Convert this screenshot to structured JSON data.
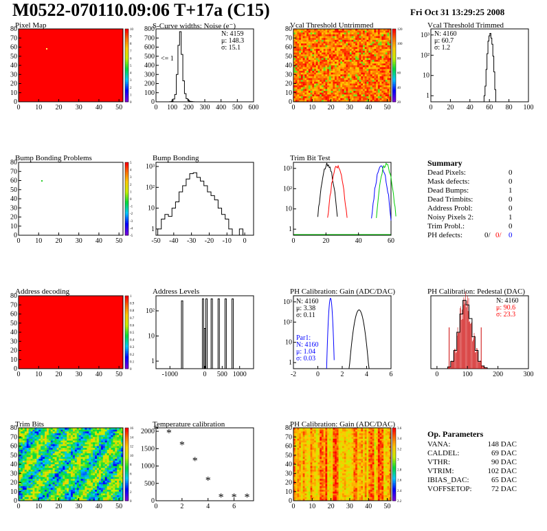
{
  "header": {
    "title": "M0522-070110.09:06 T+17a (C15)",
    "date": "Fri Oct 31 13:29:25 2008"
  },
  "colors": {
    "frame": "#000000",
    "red": "#ff0000",
    "green": "#00cc00",
    "blue": "#0000ff"
  },
  "panels": {
    "pixel_map": {
      "title": "Pixel Map",
      "x_ticks": [
        "0",
        "10",
        "20",
        "30",
        "40",
        "50"
      ],
      "y_ticks": [
        "0",
        "10",
        "20",
        "30",
        "40",
        "50",
        "60",
        "70",
        "80"
      ],
      "palette_ticks": [
        "10",
        "9",
        "8",
        "7",
        "6",
        "5",
        "4",
        "3",
        "2",
        "1",
        "0"
      ],
      "fill": "red"
    },
    "scurve": {
      "title": "S-Curve widths: Noise (e⁻)",
      "stats": [
        "N: 4159",
        "μ: 148.3",
        "σ: 15.1"
      ],
      "note": "<= 1",
      "x_ticks": [
        "0",
        "100",
        "200",
        "300",
        "400",
        "500",
        "600"
      ],
      "y_ticks": [
        "0",
        "100",
        "200",
        "300",
        "400",
        "500",
        "600",
        "700",
        "800"
      ]
    },
    "vcal_untrimmed": {
      "title": "Vcal Threshold Untrimmed",
      "x_ticks": [
        "0",
        "10",
        "20",
        "30",
        "40",
        "50"
      ],
      "y_ticks": [
        "0",
        "10",
        "20",
        "30",
        "40",
        "50",
        "60",
        "70",
        "80"
      ],
      "palette_ticks": [
        "120",
        "100",
        "80",
        "60",
        "40",
        "20"
      ]
    },
    "vcal_trimmed": {
      "title": "Vcal Threshold Trimmed",
      "stats": [
        "N: 4160",
        "μ: 60.7",
        "σ:  1.2"
      ],
      "x_ticks": [
        "0",
        "20",
        "40",
        "60",
        "80",
        "100"
      ],
      "y_ticks": [
        "1",
        "10",
        "10²",
        "10³"
      ]
    },
    "bump_problems": {
      "title": "Bump Bonding Problems",
      "x_ticks": [
        "0",
        "10",
        "20",
        "30",
        "40",
        "50"
      ],
      "y_ticks": [
        "0",
        "10",
        "20",
        "30",
        "40",
        "50",
        "60",
        "70",
        "80"
      ],
      "palette_ticks": [
        "5",
        "4",
        "3",
        "2",
        "1",
        "0",
        "-1",
        "-2",
        "-3",
        "-4",
        "-5"
      ]
    },
    "bump_bonding": {
      "title": "Bump Bonding",
      "x_ticks": [
        "-50",
        "-40",
        "-30",
        "-20",
        "-10",
        "0"
      ],
      "y_ticks": [
        "1",
        "10",
        "10²",
        "10³"
      ]
    },
    "trim_bit": {
      "title": "Trim Bit Test",
      "x_ticks": [
        "0",
        "20",
        "40",
        "60"
      ],
      "y_ticks": [
        "1",
        "10",
        "10²",
        "10³"
      ]
    },
    "address_decoding": {
      "title": "Address decoding",
      "x_ticks": [
        "0",
        "10",
        "20",
        "30",
        "40",
        "50"
      ],
      "y_ticks": [
        "0",
        "10",
        "20",
        "30",
        "40",
        "50",
        "60",
        "70",
        "80"
      ],
      "palette_ticks": [
        "1",
        "0.9",
        "0.8",
        "0.7",
        "0.6",
        "0.5",
        "0.4",
        "0.3",
        "0.2",
        "0.1",
        "0"
      ]
    },
    "address_levels": {
      "title": "Address Levels",
      "x_ticks": [
        "-1000",
        "0",
        "500",
        "1000"
      ],
      "y_ticks": [
        "1",
        "10",
        "10²"
      ]
    },
    "ph_gain": {
      "title": "PH Calibration: Gain (ADC/DAC)",
      "stats": [
        "N: 4160",
        "μ: 3.38",
        "σ: 0.11"
      ],
      "par1": [
        "Par1:",
        "N: 4160",
        "μ: 1.04",
        "σ: 0.03"
      ],
      "x_ticks": [
        "-2",
        "0",
        "2",
        "4",
        "6"
      ],
      "y_ticks": [
        "1",
        "10",
        "10²",
        "10³"
      ]
    },
    "ph_pedestal": {
      "title": "PH Calibration: Pedestal (DAC)",
      "stats": [
        "N: 4160",
        "μ: 90.6",
        "σ: 23.3"
      ],
      "x_ticks": [
        "0",
        "100",
        "200",
        "300"
      ]
    },
    "trim_bits": {
      "title": "Trim Bits",
      "x_ticks": [
        "0",
        "10",
        "20",
        "30",
        "40",
        "50"
      ],
      "y_ticks": [
        "0",
        "10",
        "20",
        "30",
        "40",
        "50",
        "60",
        "70",
        "80"
      ],
      "palette_ticks": [
        "16",
        "14",
        "12",
        "10",
        "8",
        "6",
        "4",
        "2",
        "0"
      ]
    },
    "temperature": {
      "title": "Temperature calibration",
      "x_ticks": [
        "0",
        "2",
        "4",
        "6"
      ],
      "y_ticks": [
        "0",
        "500",
        "1000",
        "1500",
        "2000"
      ]
    },
    "ph_gain_map": {
      "title": "PH Calibration: Gain (ADC/DAC)",
      "x_ticks": [
        "0",
        "10",
        "20",
        "30",
        "40",
        "50"
      ],
      "y_ticks": [
        "0",
        "10",
        "20",
        "30",
        "40",
        "50",
        "60",
        "70",
        "80"
      ],
      "palette_ticks": [
        "3.6",
        "3.4",
        "3.2",
        "3",
        "2.8",
        "2.6",
        "2.4",
        "2.2"
      ]
    }
  },
  "summary": {
    "title": "Summary",
    "rows": [
      {
        "label": "Dead Pixels:",
        "value": "0"
      },
      {
        "label": "Mask defects:",
        "value": "0"
      },
      {
        "label": "Dead Bumps:",
        "value": "1"
      },
      {
        "label": "Dead Trimbits:",
        "value": "0"
      },
      {
        "label": "Address Probl:",
        "value": "0"
      },
      {
        "label": "Noisy Pixels 2:",
        "value": "1"
      },
      {
        "label": "Trim Probl.:",
        "value": "0"
      }
    ],
    "ph_defects": {
      "label": "PH defects:",
      "v1": "0/",
      "v2": "0/",
      "v3": "0"
    }
  },
  "op_params": {
    "title": "Op. Parameters",
    "rows": [
      {
        "label": "VANA:",
        "value": "148 DAC"
      },
      {
        "label": "CALDEL:",
        "value": "69 DAC"
      },
      {
        "label": "VTHR:",
        "value": "90 DAC"
      },
      {
        "label": "VTRIM:",
        "value": "102 DAC"
      },
      {
        "label": "IBIAS_DAC:",
        "value": "65 DAC"
      },
      {
        "label": "VOFFSETOP:",
        "value": "72 DAC"
      }
    ]
  },
  "chart_data": [
    {
      "type": "heatmap",
      "title": "Pixel Map",
      "xlim": [
        0,
        52
      ],
      "ylim": [
        0,
        80
      ],
      "note": "uniform value 10 over all pixels"
    },
    {
      "type": "bar",
      "title": "S-Curve widths: Noise (e⁻)",
      "xlim": [
        0,
        600
      ],
      "ylim": [
        0,
        800
      ],
      "x": [
        90,
        100,
        110,
        120,
        130,
        140,
        150,
        160,
        170,
        180,
        190,
        200,
        210,
        220,
        230
      ],
      "values": [
        2,
        8,
        30,
        80,
        300,
        620,
        770,
        520,
        230,
        90,
        35,
        15,
        6,
        3,
        1
      ]
    },
    {
      "type": "heatmap",
      "title": "Vcal Threshold Untrimmed",
      "xlim": [
        0,
        52
      ],
      "ylim": [
        0,
        80
      ],
      "zlim": [
        0,
        130
      ]
    },
    {
      "type": "bar",
      "title": "Vcal Threshold Trimmed",
      "xlim": [
        0,
        100
      ],
      "log_y": true,
      "x": [
        55,
        56,
        57,
        58,
        59,
        60,
        61,
        62,
        63,
        64,
        65,
        66
      ],
      "values": [
        1,
        3,
        20,
        120,
        500,
        900,
        1200,
        700,
        350,
        90,
        15,
        2
      ]
    },
    {
      "type": "heatmap",
      "title": "Bump Bonding Problems",
      "xlim": [
        0,
        52
      ],
      "ylim": [
        0,
        80
      ]
    },
    {
      "type": "bar",
      "title": "Bump Bonding",
      "xlim": [
        -50,
        5
      ],
      "log_y": true,
      "x": [
        -48,
        -46,
        -44,
        -42,
        -40,
        -38,
        -36,
        -34,
        -32,
        -30,
        -28,
        -26,
        -24,
        -22,
        -20,
        -18,
        -16,
        -14,
        -12,
        -10,
        -8,
        -6,
        -4,
        -2,
        0
      ],
      "values": [
        1,
        3,
        5,
        4,
        10,
        20,
        60,
        120,
        250,
        450,
        500,
        300,
        200,
        120,
        60,
        40,
        25,
        10,
        5,
        3,
        1,
        0,
        0,
        1,
        0
      ]
    },
    {
      "type": "line",
      "title": "Trim Bit Test",
      "xlim": [
        0,
        60
      ],
      "log_y": true,
      "series": [
        {
          "color": "black",
          "peak_x": 21,
          "peak": 2000
        },
        {
          "color": "red",
          "peak_x": 27,
          "peak": 1500
        },
        {
          "color": "blue",
          "peak_x": 54,
          "peak": 1500
        },
        {
          "color": "green",
          "peak_x": 57,
          "peak": 2000
        }
      ]
    },
    {
      "type": "heatmap",
      "title": "Address decoding",
      "xlim": [
        0,
        52
      ],
      "ylim": [
        0,
        80
      ],
      "note": "uniform value 1"
    },
    {
      "type": "bar",
      "title": "Address Levels",
      "xlim": [
        -1400,
        1400
      ],
      "log_y": true,
      "x": [
        -650,
        -50,
        0,
        50,
        200,
        400,
        600,
        800
      ],
      "values": [
        250,
        300,
        20,
        300,
        300,
        300,
        300,
        300
      ]
    },
    {
      "type": "line",
      "title": "PH Calibration: Gain (ADC/DAC)",
      "xlim": [
        -2,
        6
      ],
      "log_y": true,
      "series": [
        {
          "color": "black",
          "peak_x": 3.38,
          "peak": 400
        },
        {
          "color": "blue",
          "peak_x": 1.04,
          "peak": 1500
        }
      ]
    },
    {
      "type": "bar",
      "title": "PH Calibration: Pedestal (DAC)",
      "xlim": [
        -20,
        300
      ],
      "x": [
        40,
        50,
        60,
        70,
        80,
        90,
        100,
        110,
        120,
        130,
        140,
        150,
        160
      ],
      "values": [
        2,
        8,
        20,
        40,
        60,
        75,
        70,
        55,
        35,
        20,
        8,
        3,
        1
      ]
    },
    {
      "type": "heatmap",
      "title": "Trim Bits",
      "xlim": [
        0,
        52
      ],
      "ylim": [
        0,
        80
      ],
      "zlim": [
        0,
        16
      ]
    },
    {
      "type": "scatter",
      "title": "Temperature calibration",
      "xlim": [
        0,
        7.5
      ],
      "ylim": [
        0,
        2100
      ],
      "x": [
        0,
        1,
        2,
        3,
        4,
        5,
        6,
        7
      ],
      "values": [
        2050,
        1950,
        1600,
        1150,
        580,
        100,
        100,
        100
      ]
    },
    {
      "type": "heatmap",
      "title": "PH Calibration: Gain (ADC/DAC)",
      "xlim": [
        0,
        52
      ],
      "ylim": [
        0,
        80
      ],
      "zlim": [
        2.2,
        3.7
      ]
    }
  ]
}
